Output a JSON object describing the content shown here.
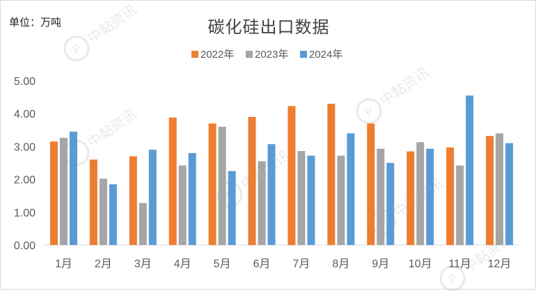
{
  "unit_label": "单位：万吨",
  "watermark": "中黏资讯",
  "colors": {
    "2022年": "#ED7D31",
    "2023年": "#A5A5A5",
    "2024年": "#5B9BD5"
  },
  "chart_data": {
    "type": "bar",
    "title": "碳化硅出口数据",
    "xlabel": "",
    "ylabel": "",
    "categories": [
      "1月",
      "2月",
      "3月",
      "4月",
      "5月",
      "6月",
      "7月",
      "8月",
      "9月",
      "10月",
      "11月",
      "12月"
    ],
    "series": [
      {
        "name": "2022年",
        "values": [
          3.15,
          2.6,
          2.7,
          3.88,
          3.7,
          3.9,
          4.23,
          4.3,
          3.7,
          2.85,
          2.97,
          3.32
        ]
      },
      {
        "name": "2023年",
        "values": [
          3.26,
          2.02,
          1.28,
          2.42,
          3.6,
          2.55,
          2.86,
          2.72,
          2.93,
          3.13,
          2.42,
          3.4
        ]
      },
      {
        "name": "2024年",
        "values": [
          3.45,
          1.85,
          2.9,
          2.8,
          2.25,
          3.07,
          2.72,
          3.4,
          2.5,
          2.93,
          4.55,
          3.1
        ]
      }
    ],
    "yticks": [
      "0.00",
      "1.00",
      "2.00",
      "3.00",
      "4.00",
      "5.00"
    ],
    "ylim": [
      0,
      5
    ],
    "grid": false,
    "legend": "top-center"
  }
}
